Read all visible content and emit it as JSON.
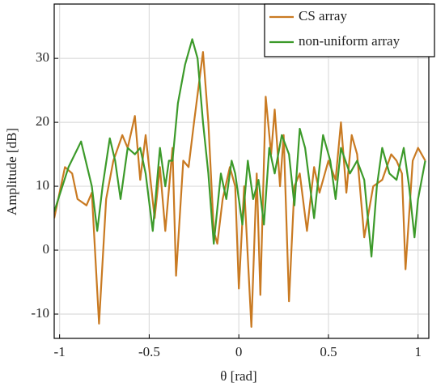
{
  "chart_data": {
    "type": "line",
    "xlabel": "θ [rad]",
    "ylabel": "Amplitude [dB]",
    "xlim": [
      -1.03,
      1.06
    ],
    "ylim": [
      -13.8,
      38.5
    ],
    "xticks": [
      -1,
      -0.5,
      0,
      0.5,
      1
    ],
    "yticks": [
      -10,
      0,
      10,
      20,
      30
    ],
    "grid": true,
    "legend": "upper right",
    "series": [
      {
        "name": "CS array",
        "color": "#c97a22",
        "x": [
          -1.03,
          -0.97,
          -0.93,
          -0.9,
          -0.85,
          -0.82,
          -0.78,
          -0.74,
          -0.7,
          -0.65,
          -0.62,
          -0.58,
          -0.55,
          -0.52,
          -0.47,
          -0.44,
          -0.41,
          -0.37,
          -0.35,
          -0.31,
          -0.28,
          -0.25,
          -0.2,
          -0.17,
          -0.14,
          -0.12,
          -0.09,
          -0.05,
          -0.02,
          0.0,
          0.03,
          0.07,
          0.1,
          0.12,
          0.15,
          0.18,
          0.2,
          0.23,
          0.25,
          0.28,
          0.31,
          0.34,
          0.38,
          0.42,
          0.45,
          0.5,
          0.54,
          0.57,
          0.6,
          0.63,
          0.66,
          0.7,
          0.75,
          0.8,
          0.85,
          0.88,
          0.91,
          0.93,
          0.97,
          1.0,
          1.04
        ],
        "values": [
          5,
          13,
          12,
          8,
          7,
          9,
          -11.5,
          8,
          14,
          18,
          16,
          21,
          11,
          18,
          5,
          13,
          3,
          16,
          -4,
          14,
          13,
          20,
          31,
          20,
          3,
          1,
          8,
          13,
          10,
          -6,
          10,
          -12,
          12,
          -7,
          24,
          15,
          22,
          10,
          18,
          -8,
          10,
          12,
          3,
          13,
          9,
          14,
          11,
          20,
          9,
          18,
          15,
          2,
          10,
          11,
          15,
          14,
          12,
          -3,
          14,
          16,
          14
        ]
      },
      {
        "name": "non-uniform array",
        "color": "#3c9a2a",
        "x": [
          -1.03,
          -0.95,
          -0.88,
          -0.82,
          -0.79,
          -0.76,
          -0.72,
          -0.69,
          -0.66,
          -0.62,
          -0.58,
          -0.55,
          -0.52,
          -0.48,
          -0.44,
          -0.41,
          -0.39,
          -0.37,
          -0.34,
          -0.3,
          -0.26,
          -0.23,
          -0.2,
          -0.17,
          -0.14,
          -0.1,
          -0.07,
          -0.04,
          -0.02,
          0.02,
          0.05,
          0.08,
          0.11,
          0.14,
          0.17,
          0.2,
          0.24,
          0.28,
          0.31,
          0.34,
          0.37,
          0.42,
          0.45,
          0.47,
          0.51,
          0.54,
          0.57,
          0.62,
          0.66,
          0.7,
          0.74,
          0.77,
          0.8,
          0.84,
          0.88,
          0.92,
          0.95,
          0.98,
          1.0,
          1.04
        ],
        "values": [
          6,
          13,
          17,
          10,
          3,
          10,
          17.5,
          14,
          8,
          16,
          15,
          16,
          12,
          3,
          16,
          10,
          14,
          14,
          23,
          29,
          33,
          30,
          20,
          12,
          1,
          12,
          8,
          14,
          12,
          4,
          14,
          8,
          11,
          4,
          16,
          12,
          18,
          15,
          7,
          19,
          16,
          5,
          13,
          18,
          14,
          8,
          16,
          12,
          14,
          11,
          -1,
          10,
          16,
          12,
          11,
          16,
          10,
          2,
          8,
          14
        ]
      }
    ]
  }
}
